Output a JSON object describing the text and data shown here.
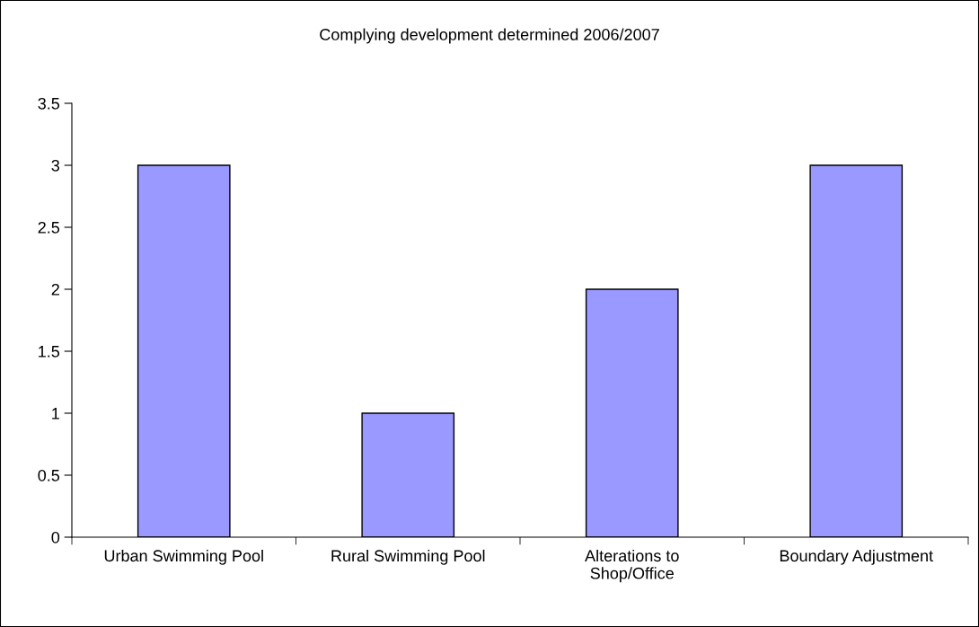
{
  "chart_data": {
    "type": "bar",
    "title": "Complying development determined 2006/2007",
    "categories": [
      "Urban Swimming Pool",
      "Rural Swimming Pool",
      "Alterations to\nShop/Office",
      "Boundary Adjustment"
    ],
    "values": [
      3,
      1,
      2,
      3
    ],
    "color": "#9999ff",
    "ylim": [
      0,
      3.5
    ],
    "yticks": [
      0,
      0.5,
      1,
      1.5,
      2,
      2.5,
      3,
      3.5
    ],
    "grid": false,
    "legend": false
  }
}
